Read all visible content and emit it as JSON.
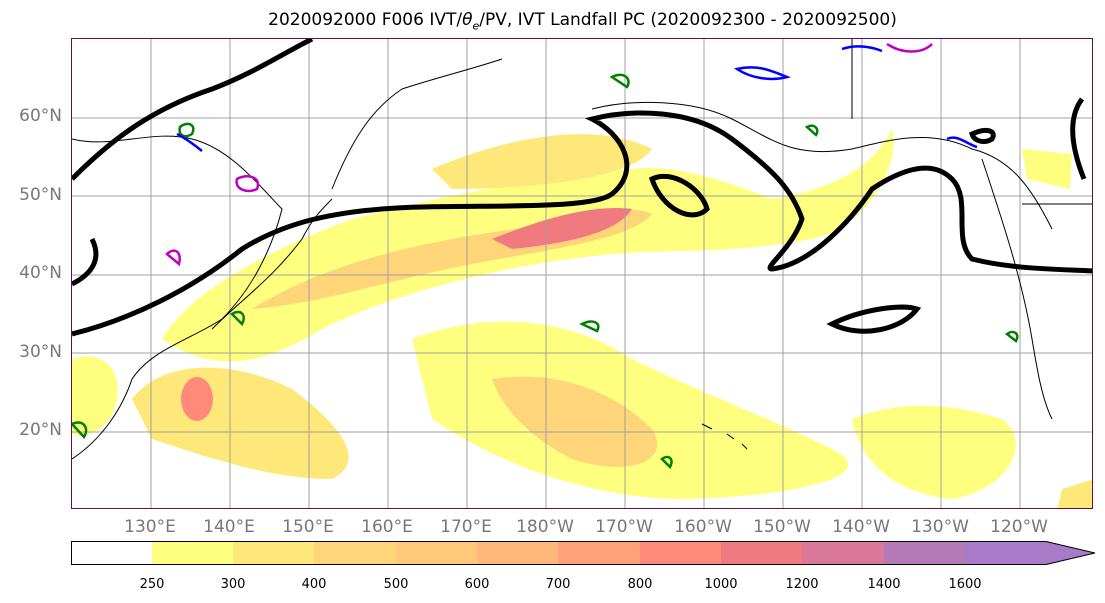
{
  "title": "2020092000 F006 IVT/θe/PV, IVT Landfall PC (2020092300 - 2020092500)",
  "title_parts": {
    "prefix": "2020092000 F006 IVT/",
    "theta": "θ",
    "sub": "e",
    "suffix": "/PV, IVT Landfall PC (2020092300 - 2020092500)"
  },
  "lat_labels": [
    "60°N",
    "50°N",
    "40°N",
    "30°N",
    "20°N"
  ],
  "lon_labels": [
    "130°E",
    "140°E",
    "150°E",
    "160°E",
    "170°E",
    "180°W",
    "170°W",
    "160°W",
    "150°W",
    "140°W",
    "130°W",
    "120°W"
  ],
  "colorbar": {
    "ticks": [
      "250",
      "300",
      "400",
      "500",
      "600",
      "700",
      "800",
      "1000",
      "1200",
      "1400",
      "1600"
    ],
    "colors": [
      "#ffffff",
      "#ffff7f",
      "#ffe87a",
      "#ffd57a",
      "#ffc87a",
      "#ffb77a",
      "#ffa27a",
      "#ff8a7a",
      "#f07a80",
      "#d97898",
      "#b47ab8",
      "#a87ac8"
    ]
  },
  "colors": {
    "contour_black": "#000000",
    "pv_green": "#008000",
    "pv_blue": "#0000ff",
    "pv_magenta": "#c000c0",
    "grid": "#a0a0a0",
    "axis_label": "#777777"
  }
}
